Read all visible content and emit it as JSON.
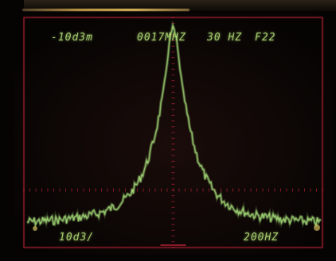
{
  "display": {
    "readout_top": {
      "reference_level": "-10d3m",
      "center_frequency": "0017MHZ",
      "resolution": "30 HZ",
      "span": "F22"
    },
    "readout_bottom": {
      "scale": "10d3/",
      "span_per_division": "200HZ"
    }
  },
  "colors": {
    "grid": "#c4243a",
    "trace": "#a8e07a",
    "text": "#b8e07a",
    "background": "#060403"
  }
}
